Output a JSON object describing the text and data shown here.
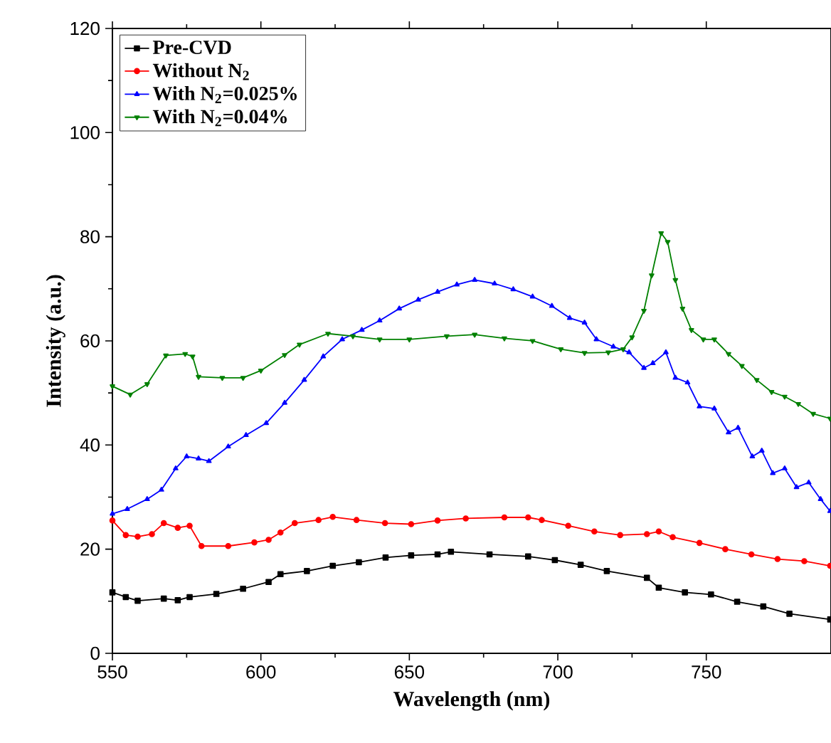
{
  "chart_data": {
    "type": "line",
    "xlabel": "Wavelength (nm)",
    "ylabel": "Intensity (a.u.)",
    "xlim": [
      550,
      792
    ],
    "ylim": [
      0,
      120
    ],
    "xticks": [
      550,
      600,
      650,
      700,
      750
    ],
    "yticks": [
      0,
      20,
      40,
      60,
      80,
      100,
      120
    ],
    "legend": "top left",
    "line_style": "solid",
    "series": [
      {
        "name": "Pre-CVD",
        "color": "#000000",
        "marker": "square",
        "x": [
          550,
          554.5,
          558.5,
          567.3,
          572,
          576,
          585,
          594,
          602.6,
          606.6,
          615.5,
          624.2,
          633,
          642,
          650.6,
          659.5,
          664,
          677,
          690,
          699,
          707.7,
          716.5,
          730,
          734,
          742.8,
          751.6,
          760.4,
          769.2,
          778,
          791.7
        ],
        "values": [
          11.7,
          10.8,
          10.1,
          10.5,
          10.2,
          10.8,
          11.4,
          12.4,
          13.7,
          15.2,
          15.8,
          16.8,
          17.5,
          18.4,
          18.8,
          19,
          19.5,
          19,
          18.6,
          17.9,
          17,
          15.8,
          14.5,
          12.6,
          11.7,
          11.3,
          9.9,
          9,
          7.6,
          6.5
        ]
      },
      {
        "name": "Without N$_{2}$",
        "color": "#ff0000",
        "marker": "circle",
        "x": [
          550,
          554.5,
          558.5,
          563.3,
          567.3,
          572,
          576,
          580,
          589,
          597.8,
          602.6,
          606.6,
          611.4,
          619.4,
          624.2,
          632.2,
          641.8,
          650.6,
          659.5,
          669,
          682,
          690,
          694.6,
          703.5,
          712.3,
          721,
          730,
          734,
          738.7,
          747.7,
          756.4,
          765.2,
          774,
          783,
          791.7
        ],
        "values": [
          25.5,
          22.7,
          22.4,
          22.9,
          25,
          24.1,
          24.5,
          20.6,
          20.6,
          21.3,
          21.8,
          23.2,
          25,
          25.6,
          26.2,
          25.6,
          25,
          24.8,
          25.5,
          25.9,
          26.1,
          26.1,
          25.6,
          24.5,
          23.4,
          22.7,
          22.9,
          23.4,
          22.3,
          21.2,
          20,
          19,
          18.1,
          17.7,
          16.8
        ]
      },
      {
        "name": "With N$_{2}$=0.025%",
        "color": "#0000ff",
        "marker": "triangle",
        "x": [
          550,
          555,
          561.7,
          566.5,
          571.3,
          575,
          579,
          582.5,
          589,
          595,
          601.8,
          608,
          614.6,
          621,
          627.4,
          634,
          640,
          646.6,
          653,
          659.5,
          666,
          672,
          678.7,
          685,
          691.5,
          698,
          704,
          709,
          713,
          718.7,
          724,
          729,
          732,
          736.4,
          739.6,
          743.7,
          747.7,
          752.7,
          757.5,
          760.7,
          765.5,
          768.7,
          772.4,
          776.4,
          780.4,
          784.5,
          788.5,
          791.7
        ],
        "values": [
          26.8,
          27.7,
          29.6,
          31.4,
          35.5,
          37.8,
          37.4,
          36.9,
          39.7,
          41.9,
          44.2,
          48.1,
          52.5,
          57,
          60.3,
          62.1,
          63.9,
          66.2,
          67.9,
          69.4,
          70.8,
          71.7,
          71,
          69.9,
          68.5,
          66.7,
          64.4,
          63.5,
          60.3,
          58.9,
          57.8,
          54.8,
          55.7,
          57.8,
          52.9,
          52,
          47.4,
          47,
          42.4,
          43.3,
          37.8,
          38.9,
          34.6,
          35.5,
          31.9,
          32.8,
          29.6,
          27.3
        ]
      },
      {
        "name": "With N$_{2}$=0.04%",
        "color": "#008000",
        "marker": "triangle-down",
        "x": [
          550,
          556,
          561.7,
          568,
          574.5,
          577,
          579,
          587,
          594,
          600,
          608,
          613,
          622.6,
          631,
          640,
          650,
          662.6,
          672,
          682,
          691.5,
          701,
          709,
          717,
          722,
          725,
          729,
          731.6,
          734.8,
          737,
          739.6,
          742,
          745,
          749,
          752.7,
          757.5,
          762,
          767,
          772,
          776.4,
          781,
          786,
          791.7
        ],
        "values": [
          51.3,
          49.7,
          51.7,
          57.2,
          57.5,
          57,
          53.1,
          52.9,
          52.9,
          54.3,
          57.3,
          59.3,
          61.4,
          60.9,
          60.3,
          60.3,
          60.9,
          61.2,
          60.5,
          60,
          58.4,
          57.7,
          57.8,
          58.4,
          60.7,
          65.8,
          72.6,
          80.7,
          79,
          71.7,
          66.2,
          62.1,
          60.3,
          60.3,
          57.5,
          55.2,
          52.5,
          50.2,
          49.3,
          47.9,
          46,
          45.1
        ]
      }
    ]
  }
}
